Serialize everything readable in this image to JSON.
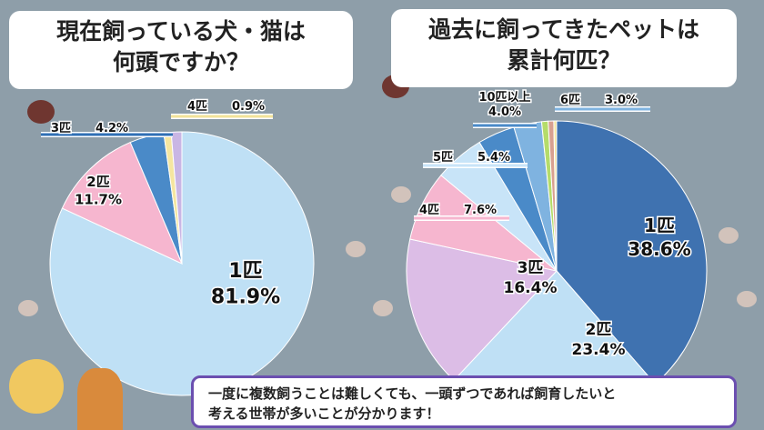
{
  "chart_data": [
    {
      "type": "pie",
      "title": "現在飼っている犬・猫は\n何頭ですか？",
      "slices": [
        {
          "label": "1匹",
          "value": 81.9,
          "text": "81.9%",
          "color": "#bfe0f5"
        },
        {
          "label": "2匹",
          "value": 11.7,
          "text": "11.7%",
          "color": "#f6b6cf"
        },
        {
          "label": "3匹",
          "value": 4.2,
          "text": "4.2%",
          "color": "#4a8ac8"
        },
        {
          "label": "4匹",
          "value": 0.9,
          "text": "0.9%",
          "color": "#f5e6a0"
        },
        {
          "label": "",
          "value": 1.3,
          "text": "",
          "color": "#c9b6e4"
        }
      ]
    },
    {
      "type": "pie",
      "title": "過去に飼ってきたペットは\n累計何匹？",
      "slices": [
        {
          "label": "1匹",
          "value": 38.6,
          "text": "38.6%",
          "color": "#3f72b0"
        },
        {
          "label": "2匹",
          "value": 23.4,
          "text": "23.4%",
          "color": "#bfe0f5"
        },
        {
          "label": "3匹",
          "value": 16.4,
          "text": "16.4%",
          "color": "#dcbde6"
        },
        {
          "label": "4匹",
          "value": 7.6,
          "text": "7.6%",
          "color": "#f6b6cf"
        },
        {
          "label": "5匹",
          "value": 5.4,
          "text": "5.4%",
          "color": "#c8e4f8"
        },
        {
          "label": "10匹以上",
          "value": 4.0,
          "text": "4.0%",
          "color": "#4a8ac8"
        },
        {
          "label": "6匹",
          "value": 3.0,
          "text": "3.0%",
          "color": "#7fb3e0"
        },
        {
          "label": "",
          "value": 0.7,
          "text": "",
          "color": "#b5dc6a"
        },
        {
          "label": "",
          "value": 0.6,
          "text": "",
          "color": "#d8a090"
        },
        {
          "label": "",
          "value": 0.3,
          "text": "",
          "color": "#f5e6a0"
        }
      ]
    }
  ],
  "caption": "一度に複数飼うことは難しくても、一頭ずつであれば飼育したいと\n考える世帯が多いことが分かります！"
}
